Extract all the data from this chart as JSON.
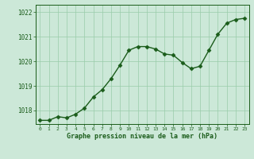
{
  "x": [
    0,
    1,
    2,
    3,
    4,
    5,
    6,
    7,
    8,
    9,
    10,
    11,
    12,
    13,
    14,
    15,
    16,
    17,
    18,
    19,
    20,
    21,
    22,
    23
  ],
  "y": [
    1017.6,
    1017.6,
    1017.75,
    1017.7,
    1017.85,
    1018.1,
    1018.55,
    1018.85,
    1019.3,
    1019.85,
    1020.45,
    1020.6,
    1020.6,
    1020.5,
    1020.3,
    1020.25,
    1019.95,
    1019.7,
    1019.8,
    1020.45,
    1021.1,
    1021.55,
    1021.7,
    1021.75
  ],
  "line_color": "#1a5c1a",
  "marker_color": "#1a5c1a",
  "bg_color": "#cce8d8",
  "grid_color": "#99ccaa",
  "xlabel": "Graphe pression niveau de la mer (hPa)",
  "xlabel_color": "#1a5c1a",
  "ylim_min": 1017.45,
  "ylim_max": 1022.3,
  "yticks": [
    1018,
    1019,
    1020,
    1021,
    1022
  ],
  "xticks": [
    0,
    1,
    2,
    3,
    4,
    5,
    6,
    7,
    8,
    9,
    10,
    11,
    12,
    13,
    14,
    15,
    16,
    17,
    18,
    19,
    20,
    21,
    22,
    23
  ]
}
